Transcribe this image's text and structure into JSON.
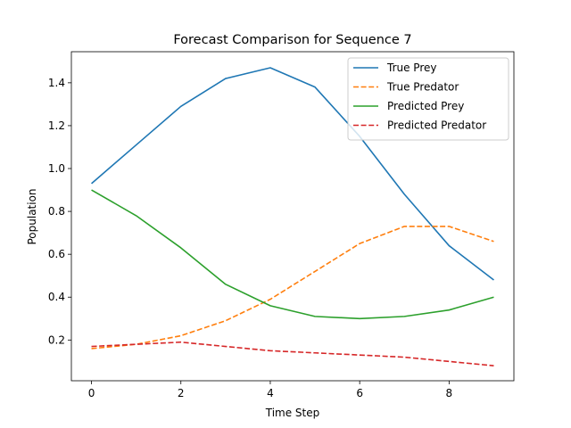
{
  "chart_data": {
    "type": "line",
    "title": "Forecast Comparison for Sequence 7",
    "xlabel": "Time Step",
    "ylabel": "Population",
    "x": [
      0,
      1,
      2,
      3,
      4,
      5,
      6,
      7,
      8,
      9
    ],
    "xlim": [
      -0.45,
      9.45
    ],
    "ylim": [
      0.01,
      1.545
    ],
    "xticks": [
      0,
      2,
      4,
      6,
      8
    ],
    "yticks": [
      0.2,
      0.4,
      0.6,
      0.8,
      1.0,
      1.2,
      1.4
    ],
    "xtick_labels": [
      "0",
      "2",
      "4",
      "6",
      "8"
    ],
    "ytick_labels": [
      "0.2",
      "0.4",
      "0.6",
      "0.8",
      "1.0",
      "1.2",
      "1.4"
    ],
    "grid": false,
    "legend_position": "top-right",
    "series": [
      {
        "name": "True Prey",
        "color": "#1f77b4",
        "dash": "solid",
        "values": [
          0.93,
          1.11,
          1.29,
          1.42,
          1.47,
          1.38,
          1.15,
          0.88,
          0.64,
          0.48
        ]
      },
      {
        "name": "True Predator",
        "color": "#ff7f0e",
        "dash": "dashed",
        "values": [
          0.16,
          0.18,
          0.22,
          0.29,
          0.39,
          0.52,
          0.65,
          0.73,
          0.73,
          0.66
        ]
      },
      {
        "name": "Predicted Prey",
        "color": "#2ca02c",
        "dash": "solid",
        "values": [
          0.9,
          0.78,
          0.63,
          0.46,
          0.36,
          0.31,
          0.3,
          0.31,
          0.34,
          0.4
        ]
      },
      {
        "name": "Predicted Predator",
        "color": "#d62728",
        "dash": "dashed",
        "values": [
          0.17,
          0.18,
          0.19,
          0.17,
          0.15,
          0.14,
          0.13,
          0.12,
          0.1,
          0.08
        ]
      }
    ]
  }
}
